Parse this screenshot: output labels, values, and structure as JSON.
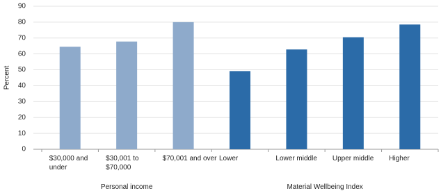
{
  "chart_data": {
    "type": "bar",
    "y_label": "Percent",
    "categories": [
      "$30,000 and under",
      "$30,001 to $70,000",
      "$70,001 and over",
      "Lower",
      "Lower middle",
      "Upper middle",
      "Higher"
    ],
    "series": [
      {
        "name": "Personal income",
        "color": "#8eaacb",
        "values": [
          64.5,
          67.8,
          80,
          null,
          null,
          null,
          null
        ]
      },
      {
        "name": "Material Wellbeing Index",
        "color": "#2b6ba8",
        "values": [
          null,
          null,
          null,
          49.2,
          62.8,
          70.5,
          78.5
        ]
      }
    ],
    "ylim": [
      0,
      90
    ],
    "yticks": [
      0,
      10,
      20,
      30,
      40,
      50,
      60,
      70,
      80,
      90
    ],
    "grid": true
  }
}
